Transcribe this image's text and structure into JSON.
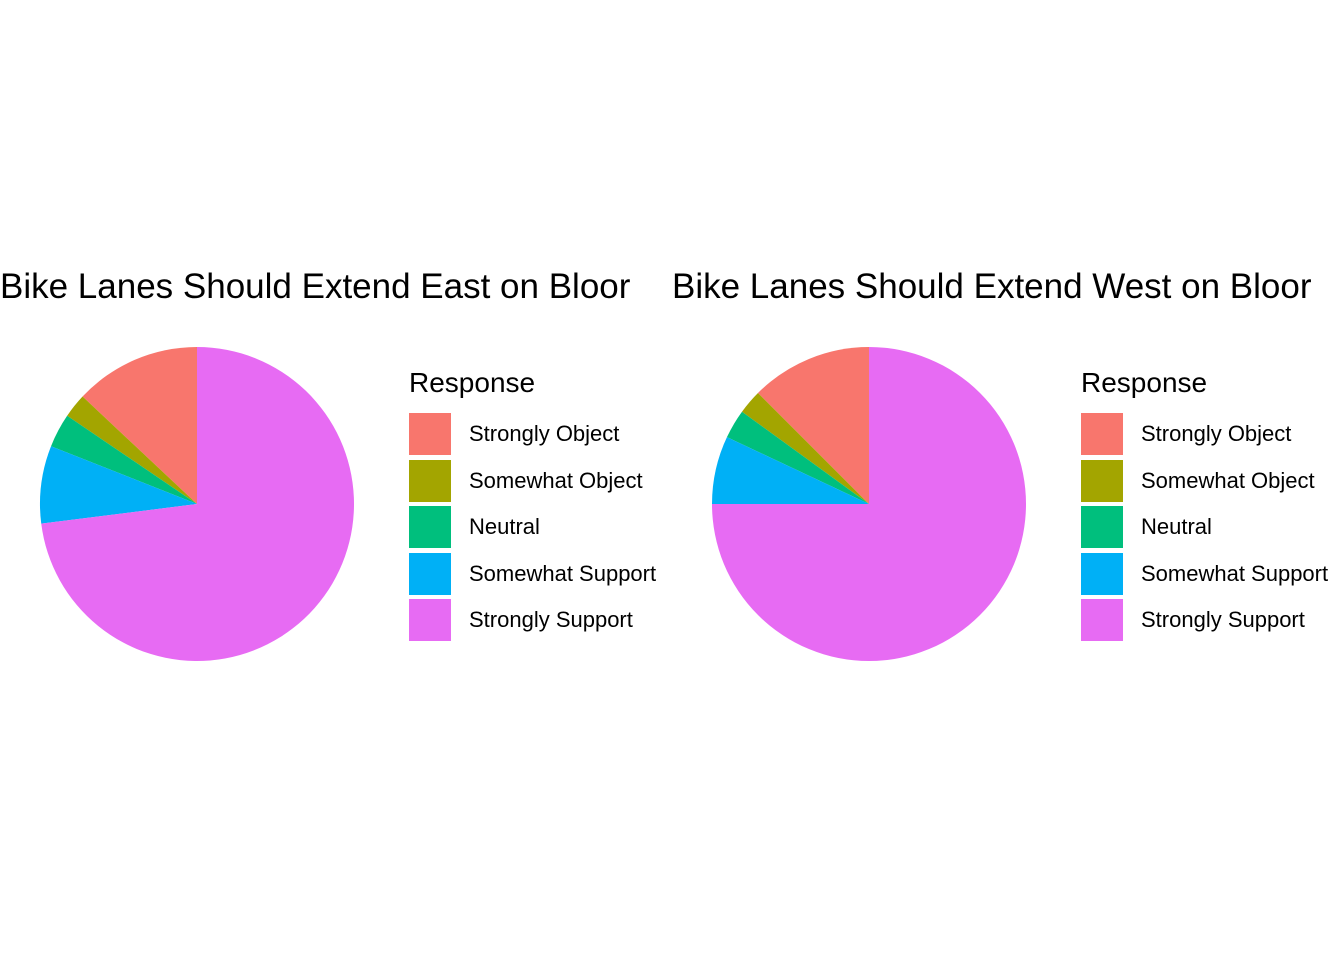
{
  "chart_data": [
    {
      "type": "pie",
      "title": "Bike Lanes Should Extend East on Bloor",
      "legend_title": "Response",
      "legend_position": "right",
      "categories": [
        "Strongly Object",
        "Somewhat Object",
        "Neutral",
        "Somewhat Support",
        "Strongly Support"
      ],
      "values": [
        13.0,
        2.5,
        3.5,
        8.0,
        73.0
      ],
      "colors": [
        "#F8766D",
        "#A3A500",
        "#00BF7D",
        "#00B0F6",
        "#E76BF3"
      ]
    },
    {
      "type": "pie",
      "title": "Bike Lanes Should Extend West on Bloor",
      "legend_title": "Response",
      "legend_position": "right",
      "categories": [
        "Strongly Object",
        "Somewhat Object",
        "Neutral",
        "Somewhat Support",
        "Strongly Support"
      ],
      "values": [
        12.5,
        2.5,
        3.0,
        7.0,
        75.0
      ],
      "colors": [
        "#F8766D",
        "#A3A500",
        "#00BF7D",
        "#00B0F6",
        "#E76BF3"
      ]
    }
  ]
}
